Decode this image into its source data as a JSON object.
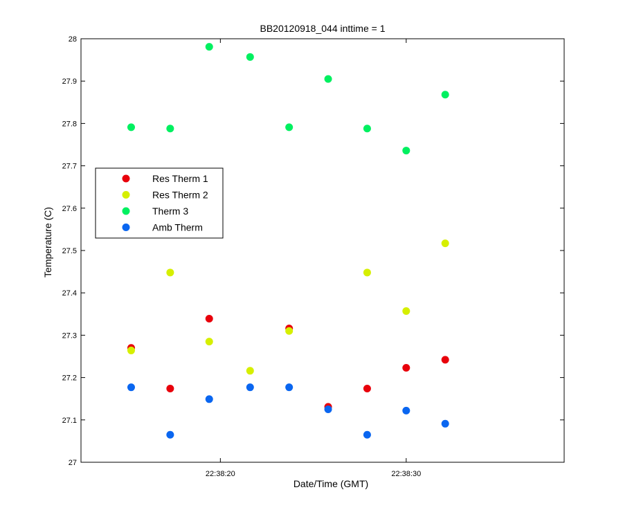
{
  "chart_data": {
    "type": "scatter",
    "title": "BB20120918_044 inttime = 1",
    "xlabel": "Date/Time (GMT)",
    "ylabel": "Temperature (C)",
    "x_unit": "time of day (GMT)",
    "xlim": [
      "22:38:12.5",
      "22:38:38.5"
    ],
    "xticks": [
      "22:38:20",
      "22:38:30"
    ],
    "ylim": [
      27,
      28
    ],
    "yticks": [
      "27",
      "27.1",
      "27.2",
      "27.3",
      "27.4",
      "27.5",
      "27.6",
      "27.7",
      "27.8",
      "27.9",
      "28"
    ],
    "grid": false,
    "legend_position": "left",
    "x": [
      "22:38:15.2",
      "22:38:17.3",
      "22:38:19.4",
      "22:38:21.6",
      "22:38:23.7",
      "22:38:25.8",
      "22:38:27.9",
      "22:38:30.0",
      "22:38:32.1"
    ],
    "series": [
      {
        "name": "Res Therm 1",
        "color": "#e8000b",
        "values": [
          27.27,
          27.174,
          27.339,
          null,
          27.316,
          27.131,
          27.174,
          27.223,
          27.242
        ]
      },
      {
        "name": "Res Therm 2",
        "color": "#d6ef00",
        "values": [
          27.264,
          27.448,
          27.285,
          27.216,
          27.31,
          null,
          27.448,
          27.357,
          27.517
        ]
      },
      {
        "name": "Therm 3",
        "color": "#00f060",
        "values": [
          27.791,
          27.788,
          27.981,
          27.957,
          27.791,
          27.905,
          27.788,
          27.736,
          27.868
        ]
      },
      {
        "name": "Amb Therm",
        "color": "#0a66f0",
        "values": [
          27.177,
          27.065,
          27.149,
          27.177,
          27.177,
          27.125,
          27.065,
          27.122,
          27.091
        ]
      }
    ]
  }
}
